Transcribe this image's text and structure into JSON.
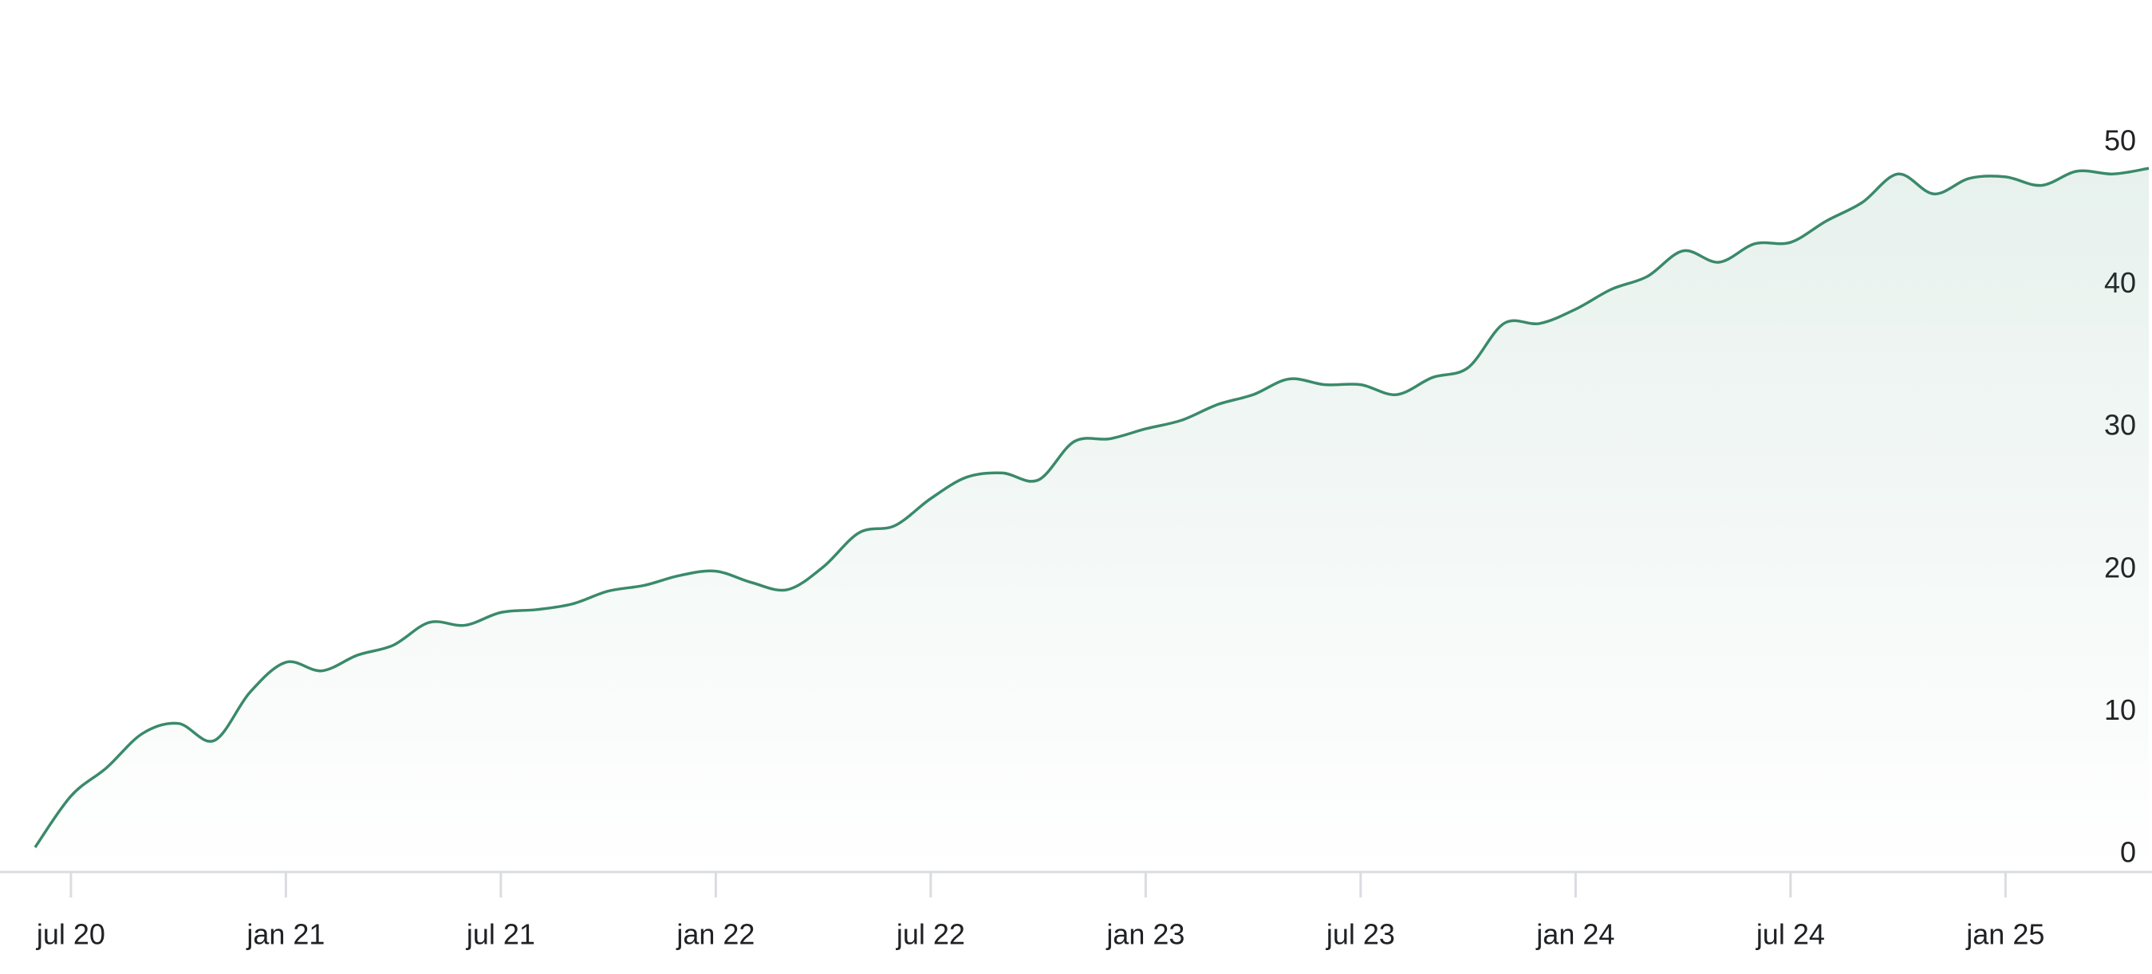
{
  "chart_data": {
    "type": "area",
    "x": [
      "2020-06",
      "2020-07",
      "2020-08",
      "2020-09",
      "2020-10",
      "2020-11",
      "2020-12",
      "2021-01",
      "2021-02",
      "2021-03",
      "2021-04",
      "2021-05",
      "2021-06",
      "2021-07",
      "2021-08",
      "2021-09",
      "2021-10",
      "2021-11",
      "2021-12",
      "2022-01",
      "2022-02",
      "2022-03",
      "2022-04",
      "2022-05",
      "2022-06",
      "2022-07",
      "2022-08",
      "2022-09",
      "2022-10",
      "2022-11",
      "2022-12",
      "2023-01",
      "2023-02",
      "2023-03",
      "2023-04",
      "2023-05",
      "2023-06",
      "2023-07",
      "2023-08",
      "2023-09",
      "2023-10",
      "2023-11",
      "2023-12",
      "2024-01",
      "2024-02",
      "2024-03",
      "2024-04",
      "2024-05",
      "2024-06",
      "2024-07",
      "2024-08",
      "2024-09",
      "2024-10",
      "2024-11",
      "2024-12",
      "2025-01",
      "2025-02",
      "2025-03",
      "2025-04",
      "2025-05"
    ],
    "values": [
      0.5,
      4.1,
      6.1,
      8.5,
      9.2,
      8.0,
      11.4,
      13.5,
      12.9,
      14.0,
      14.7,
      16.3,
      16.1,
      17.0,
      17.2,
      17.6,
      18.5,
      18.9,
      19.6,
      19.9,
      19.1,
      18.6,
      20.2,
      22.6,
      23.1,
      25.0,
      26.5,
      26.8,
      26.3,
      29.0,
      29.2,
      29.9,
      30.5,
      31.6,
      32.3,
      33.4,
      33.0,
      33.0,
      32.3,
      33.5,
      34.2,
      37.3,
      37.3,
      38.3,
      39.7,
      40.6,
      42.4,
      41.6,
      42.9,
      43.0,
      44.5,
      45.8,
      47.8,
      46.4,
      47.5,
      47.6,
      47.0,
      48.0,
      47.8,
      48.2
    ],
    "color": "#3a8a6a",
    "xlim": [
      "2020-06",
      "2025-05"
    ],
    "xticks": [
      {
        "value": "2020-07",
        "label": "jul 20"
      },
      {
        "value": "2021-01",
        "label": "jan 21"
      },
      {
        "value": "2021-07",
        "label": "jul 21"
      },
      {
        "value": "2022-01",
        "label": "jan 22"
      },
      {
        "value": "2022-07",
        "label": "jul 22"
      },
      {
        "value": "2023-01",
        "label": "jan 23"
      },
      {
        "value": "2023-07",
        "label": "jul 23"
      },
      {
        "value": "2024-01",
        "label": "jan 24"
      },
      {
        "value": "2024-07",
        "label": "jul 24"
      },
      {
        "value": "2025-01",
        "label": "jan 25"
      }
    ],
    "ylim": [
      0,
      50
    ],
    "yticks": [
      0,
      10,
      20,
      30,
      40,
      50
    ],
    "y_axis_side": "right",
    "grid": false
  }
}
